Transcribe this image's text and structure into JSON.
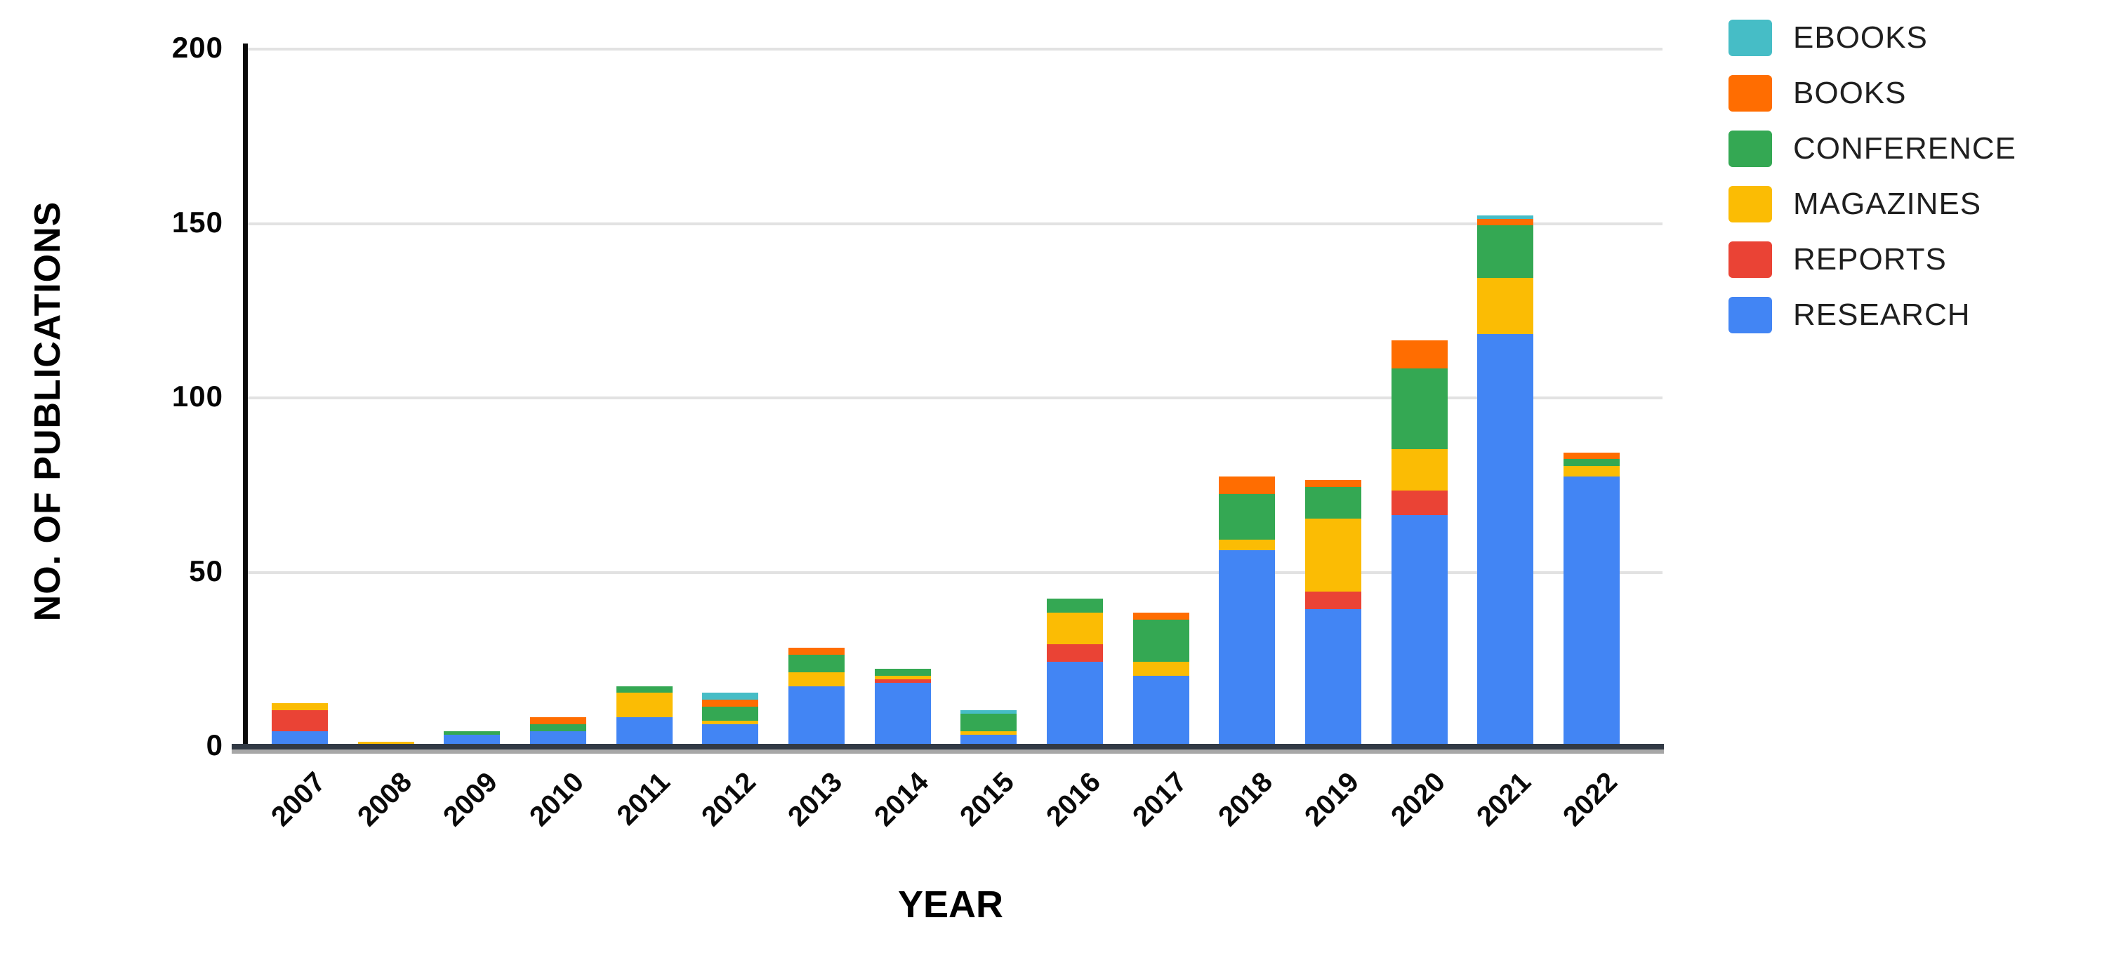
{
  "axes": {
    "y_title": "NO. OF PUBLICATIONS",
    "x_title": "YEAR",
    "y_ticks": [
      "0",
      "50",
      "100",
      "150",
      "200"
    ]
  },
  "legend": {
    "items": [
      {
        "label": "EBOOKS",
        "color": "#46BDC6"
      },
      {
        "label": "BOOKS",
        "color": "#FF6D01"
      },
      {
        "label": "CONFERENCE",
        "color": "#34A853"
      },
      {
        "label": "MAGAZINES",
        "color": "#FBBC04"
      },
      {
        "label": "REPORTS",
        "color": "#EA4335"
      },
      {
        "label": "RESEARCH",
        "color": "#4285F4"
      }
    ]
  },
  "chart_data": {
    "type": "bar",
    "stacked": true,
    "xlabel": "YEAR",
    "ylabel": "NO. OF PUBLICATIONS",
    "ylim": [
      0,
      200
    ],
    "yticks": [
      0,
      50,
      100,
      150,
      200
    ],
    "grid": true,
    "legend_position": "right",
    "categories": [
      "2007",
      "2008",
      "2009",
      "2010",
      "2011",
      "2012",
      "2013",
      "2014",
      "2015",
      "2016",
      "2017",
      "2018",
      "2019",
      "2020",
      "2021",
      "2022"
    ],
    "series": [
      {
        "name": "RESEARCH",
        "color": "#4285F4",
        "values": [
          4,
          0,
          3,
          4,
          8,
          6,
          17,
          18,
          3,
          24,
          20,
          56,
          39,
          66,
          118,
          77
        ]
      },
      {
        "name": "REPORTS",
        "color": "#EA4335",
        "values": [
          6,
          0,
          0,
          0,
          0,
          0,
          0,
          1,
          0,
          5,
          0,
          0,
          5,
          7,
          0,
          0
        ]
      },
      {
        "name": "MAGAZINES",
        "color": "#FBBC04",
        "values": [
          2,
          1,
          0,
          0,
          7,
          1,
          4,
          1,
          1,
          9,
          4,
          3,
          21,
          12,
          16,
          3
        ]
      },
      {
        "name": "CONFERENCE",
        "color": "#34A853",
        "values": [
          0,
          0,
          1,
          2,
          2,
          4,
          5,
          2,
          5,
          4,
          12,
          13,
          9,
          23,
          15,
          2
        ]
      },
      {
        "name": "BOOKS",
        "color": "#FF6D01",
        "values": [
          0,
          0,
          0,
          2,
          0,
          2,
          2,
          0,
          0,
          0,
          2,
          5,
          2,
          8,
          2,
          2
        ]
      },
      {
        "name": "EBOOKS",
        "color": "#46BDC6",
        "values": [
          0,
          0,
          0,
          0,
          0,
          2,
          0,
          0,
          1,
          0,
          0,
          0,
          0,
          0,
          1,
          0
        ]
      }
    ],
    "totals": [
      12,
      1,
      4,
      8,
      17,
      15,
      28,
      22,
      10,
      42,
      38,
      77,
      76,
      116,
      152,
      84
    ]
  }
}
